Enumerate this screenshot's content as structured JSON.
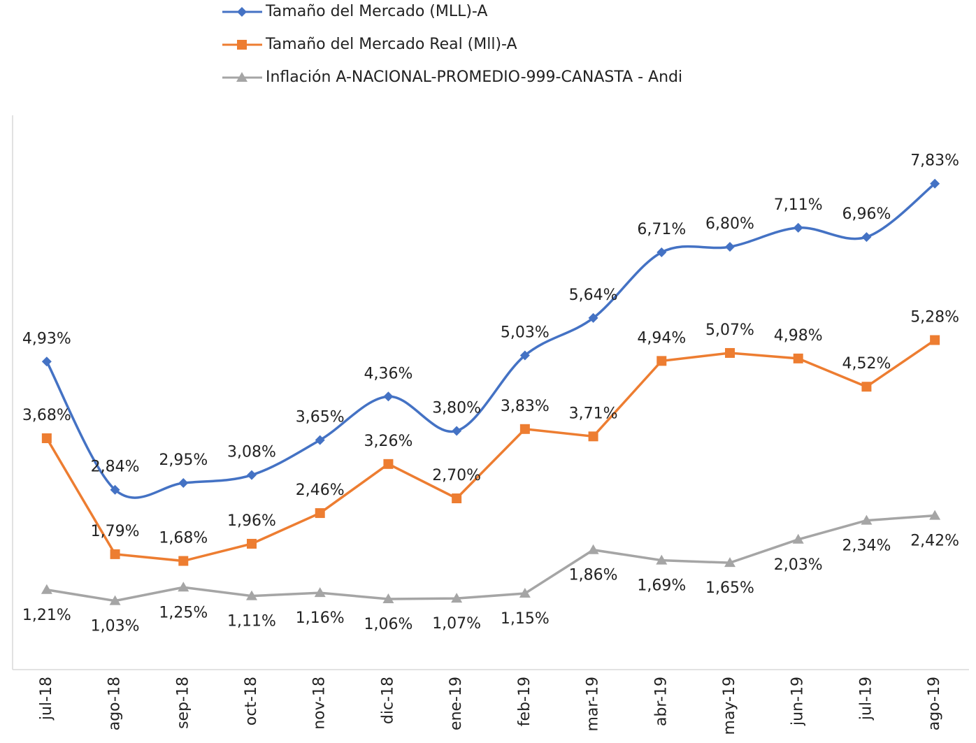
{
  "chart_data": {
    "type": "line",
    "categories": [
      "jul-18",
      "ago-18",
      "sep-18",
      "oct-18",
      "nov-18",
      "dic-18",
      "ene-19",
      "feb-19",
      "mar-19",
      "abr-19",
      "may-19",
      "jun-19",
      "jul-19",
      "ago-19"
    ],
    "ylim": [
      0,
      9
    ],
    "series": [
      {
        "name": "Tamaño del Mercado (MLL)-A",
        "color": "#4472c4",
        "marker": "diamond",
        "smooth": true,
        "values": [
          4.93,
          2.84,
          2.95,
          3.08,
          3.65,
          4.36,
          3.8,
          5.03,
          5.64,
          6.71,
          6.8,
          7.11,
          6.96,
          7.83
        ],
        "value_labels": [
          "4,93%",
          "2,84%",
          "2,95%",
          "3,08%",
          "3,65%",
          "4,36%",
          "3,80%",
          "5,03%",
          "5,64%",
          "6,71%",
          "6,80%",
          "7,11%",
          "6,96%",
          "7,83%"
        ]
      },
      {
        "name": "Tamaño del Mercado Real (Mll)-A",
        "color": "#ed7d31",
        "marker": "square",
        "smooth": false,
        "values": [
          3.68,
          1.79,
          1.68,
          1.96,
          2.46,
          3.26,
          2.7,
          3.83,
          3.71,
          4.94,
          5.07,
          4.98,
          4.52,
          5.28
        ],
        "value_labels": [
          "3,68%",
          "1,79%",
          "1,68%",
          "1,96%",
          "2,46%",
          "3,26%",
          "2,70%",
          "3,83%",
          "3,71%",
          "4,94%",
          "5,07%",
          "4,98%",
          "4,52%",
          "5,28%"
        ]
      },
      {
        "name": "Inflación A-NACIONAL-PROMEDIO-999-CANASTA - Andi",
        "color": "#a5a5a5",
        "marker": "triangle",
        "smooth": false,
        "values": [
          1.21,
          1.03,
          1.25,
          1.11,
          1.16,
          1.06,
          1.07,
          1.15,
          1.86,
          1.69,
          1.65,
          2.03,
          2.34,
          2.42
        ],
        "value_labels": [
          "1,21%",
          "1,03%",
          "1,25%",
          "1,11%",
          "1,16%",
          "1,06%",
          "1,07%",
          "1,15%",
          "1,86%",
          "1,69%",
          "1,65%",
          "2,03%",
          "2,34%",
          "2,42%"
        ]
      }
    ]
  }
}
